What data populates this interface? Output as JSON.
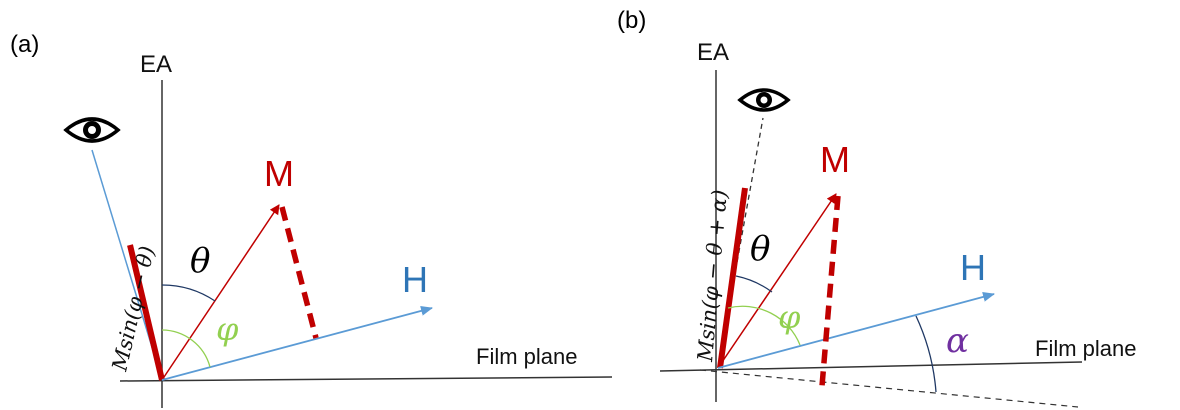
{
  "panel_a": {
    "tag": "(a)",
    "axis_label": "EA",
    "vector_m": "M",
    "vector_h": "H",
    "angle_theta": "θ",
    "angle_phi": "φ",
    "plane_label": "Film plane",
    "projection_label": "Msin(φ − θ)",
    "observer_icon": "eye-icon",
    "colors": {
      "magnetization": "#c00000",
      "field": "#5b9bd5",
      "phi": "#92d050",
      "axis": "#333333"
    }
  },
  "panel_b": {
    "tag": "(b)",
    "axis_label": "EA",
    "vector_m": "M",
    "vector_h": "H",
    "angle_theta": "θ",
    "angle_phi": "φ",
    "angle_alpha": "α",
    "plane_label": "Film plane",
    "projection_label": "Msin(φ − θ + α)",
    "observer_icon": "eye-icon",
    "colors": {
      "magnetization": "#c00000",
      "field": "#5b9bd5",
      "phi": "#92d050",
      "alpha": "#7030a0",
      "axis": "#333333"
    }
  }
}
